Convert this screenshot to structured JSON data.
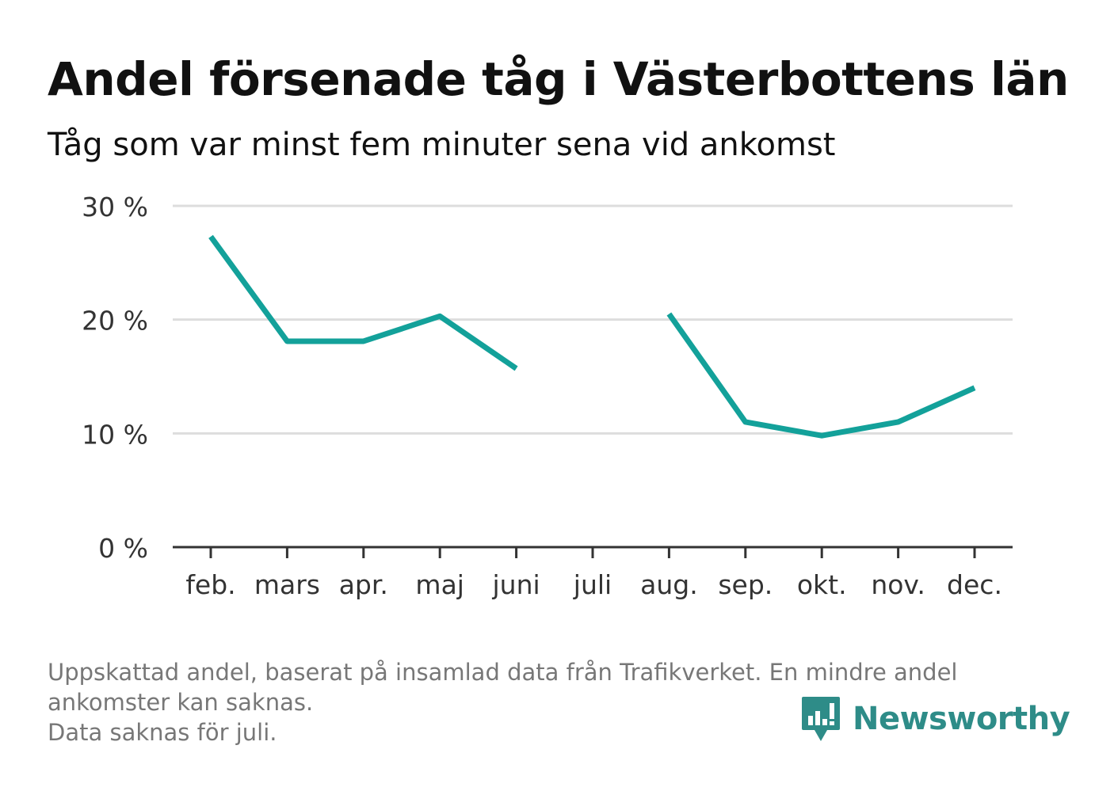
{
  "title": "Andel försenade tåg i Västerbottens län",
  "subtitle": "Tåg som var minst fem minuter sena vid ankomst",
  "footer": {
    "line1": "Uppskattad andel, baserat på insamlad data från Trafikverket. En mindre andel",
    "line2": "ankomster kan saknas.",
    "line3": "Data saknas för juli."
  },
  "brand": {
    "name": "Newsworthy",
    "icon": "newsworthy-logo-icon",
    "color": "#2e8c88"
  },
  "chart_data": {
    "type": "line",
    "categories": [
      "feb.",
      "mars",
      "apr.",
      "maj",
      "juni",
      "juli",
      "aug.",
      "sep.",
      "okt.",
      "nov.",
      "dec."
    ],
    "series": [
      {
        "values": [
          27.3,
          18.1,
          18.1,
          20.3,
          15.7,
          null,
          20.5,
          11.0,
          9.8,
          11.0,
          14.0
        ],
        "color": "#13a19a"
      }
    ],
    "ylim": [
      0,
      30
    ],
    "yticks": [
      0,
      10,
      20,
      30
    ],
    "ytick_labels": [
      "0 %",
      "10 %",
      "20 %",
      "30 %"
    ],
    "grid": true,
    "xlabel": "",
    "ylabel": ""
  }
}
